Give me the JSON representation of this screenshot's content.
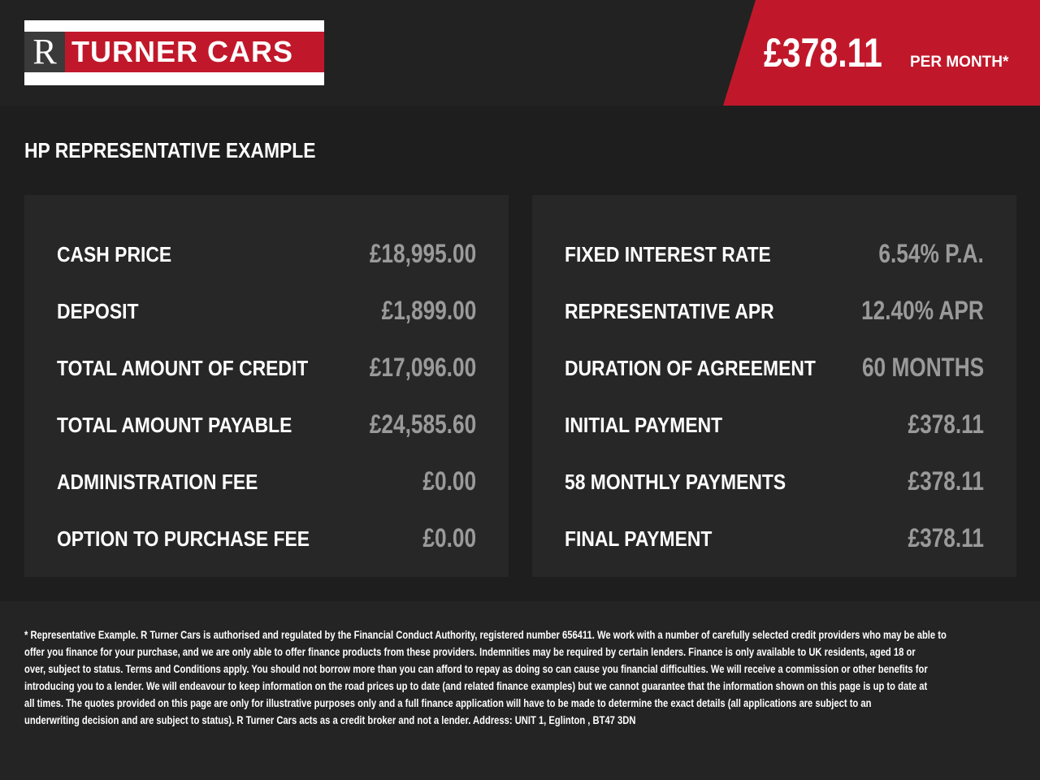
{
  "header": {
    "logo_text": "R TURNER CARS",
    "logo_r": "R",
    "logo_name": "TURNER CARS",
    "monthly_price": "£378.11",
    "per_month_label": "PER MONTH*"
  },
  "section_title": "HP REPRESENTATIVE EXAMPLE",
  "left_rows": [
    {
      "label": "CASH PRICE",
      "value": "£18,995.00"
    },
    {
      "label": "DEPOSIT",
      "value": "£1,899.00"
    },
    {
      "label": "TOTAL AMOUNT OF CREDIT",
      "value": "£17,096.00"
    },
    {
      "label": "TOTAL AMOUNT PAYABLE",
      "value": "£24,585.60"
    },
    {
      "label": "ADMINISTRATION FEE",
      "value": "£0.00"
    },
    {
      "label": "OPTION TO PURCHASE FEE",
      "value": "£0.00"
    }
  ],
  "right_rows": [
    {
      "label": "FIXED INTEREST RATE",
      "value": "6.54% P.A."
    },
    {
      "label": "REPRESENTATIVE APR",
      "value": "12.40% APR"
    },
    {
      "label": "DURATION OF AGREEMENT",
      "value": "60 MONTHS"
    },
    {
      "label": "INITIAL PAYMENT",
      "value": "£378.11"
    },
    {
      "label": "58 MONTHLY PAYMENTS",
      "value": "£378.11"
    },
    {
      "label": "FINAL PAYMENT",
      "value": "£378.11"
    }
  ],
  "footer_lines": [
    "* Representative Example. R Turner Cars is authorised and regulated by the Financial Conduct Authority, registered number 656411. We work with a number of carefully selected credit providers who may be able to",
    "offer you finance for your purchase, and we are only able to offer finance products from these providers. Indemnities may be required by certain lenders. Finance is only available to UK residents, aged 18 or",
    "over, subject to status. Terms and Conditions apply. You should not borrow more than you can afford to repay as doing so can cause you financial difficulties. We will receive a commission or other benefits for",
    "introducing you to a lender. We will endeavour to keep information on the road prices up to date (and related finance examples) but we cannot guarantee that the information shown on this page is up to date at",
    "all times. The quotes provided on this page are only for illustrative purposes only and a full finance application will have to be made to determine the exact details (all applications are subject to an",
    "underwriting decision and are subject to status). R Turner Cars acts as a credit broker and not a lender. Address: UNIT 1, Eglinton , BT47 3DN"
  ],
  "colors": {
    "accent": "#c0182a",
    "background": "#1e1e1e",
    "panel": "#272727",
    "value": "#9a9a9a"
  }
}
